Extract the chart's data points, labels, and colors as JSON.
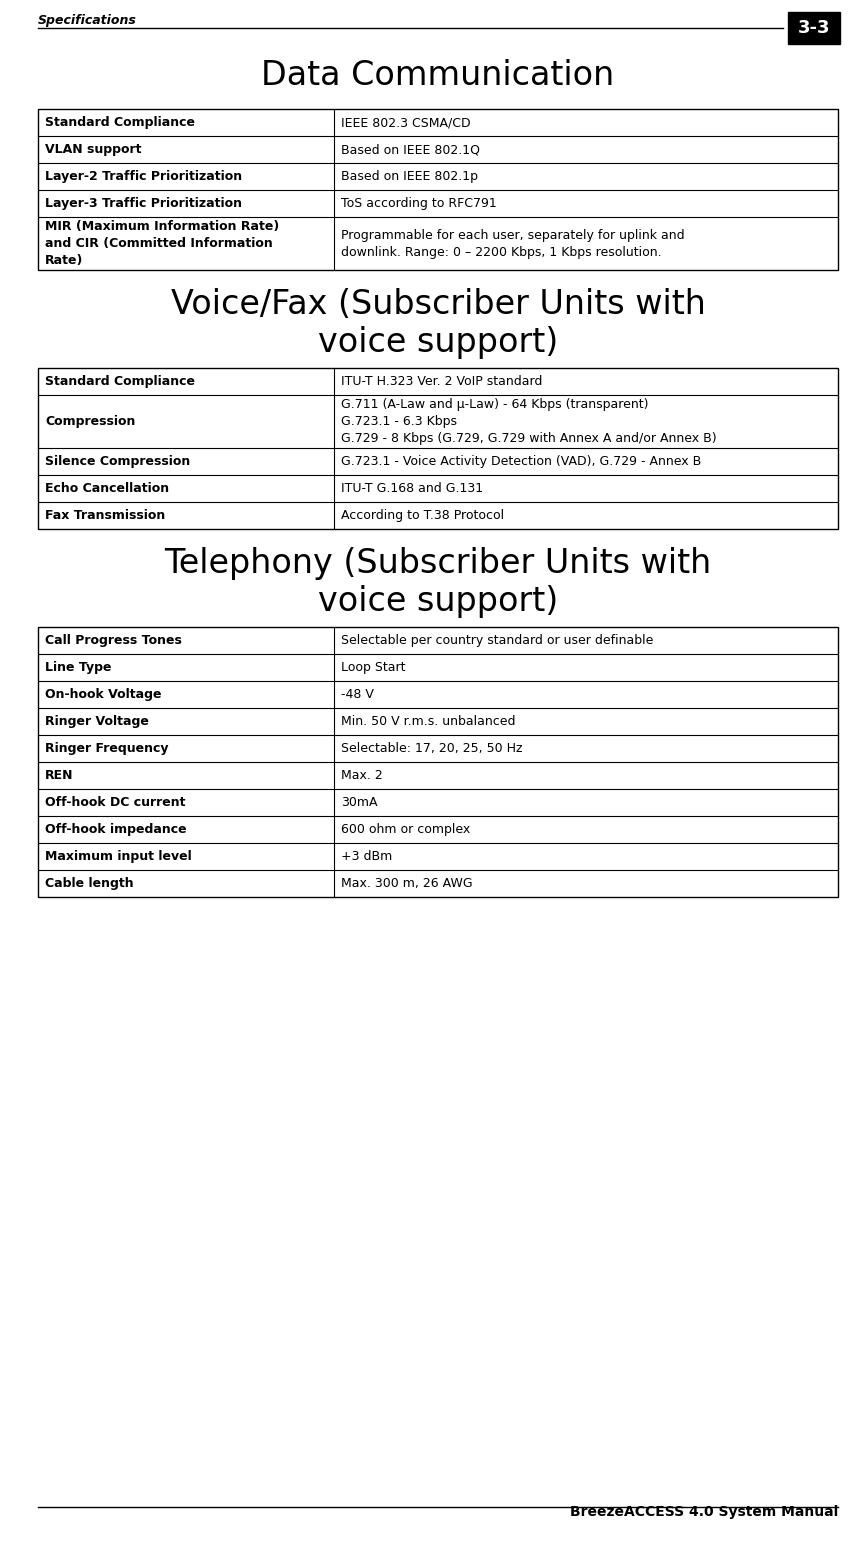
{
  "header_text": "Specifications",
  "page_num": "3-3",
  "footer_text": "BreezeACCESS 4.0 System Manual",
  "title1": "Data Communication",
  "title2": "Voice/Fax (Subscriber Units with\nvoice support)",
  "title3": "Telephony (Subscriber Units with\nvoice support)",
  "table1": {
    "rows": [
      [
        "Standard Compliance",
        "IEEE 802.3 CSMA/CD"
      ],
      [
        "VLAN support",
        "Based on IEEE 802.1Q"
      ],
      [
        "Layer-2 Traffic Prioritization",
        "Based on IEEE 802.1p"
      ],
      [
        "Layer-3 Traffic Prioritization",
        "ToS according to RFC791"
      ],
      [
        "MIR (Maximum Information Rate)\nand CIR (Committed Information\nRate)",
        "Programmable for each user, separately for uplink and\ndownlink. Range: 0 – 2200 Kbps, 1 Kbps resolution."
      ]
    ],
    "col_split": 0.37
  },
  "table2": {
    "rows": [
      [
        "Standard Compliance",
        "ITU-T H.323 Ver. 2 VoIP standard"
      ],
      [
        "Compression",
        "G.711 (A-Law and μ-Law) - 64 Kbps (transparent)\nG.723.1 - 6.3 Kbps\nG.729 - 8 Kbps (G.729, G.729 with Annex A and/or Annex B)"
      ],
      [
        "Silence Compression",
        "G.723.1 - Voice Activity Detection (VAD), G.729 - Annex B"
      ],
      [
        "Echo Cancellation",
        "ITU-T G.168 and G.131"
      ],
      [
        "Fax Transmission",
        "According to T.38 Protocol"
      ]
    ],
    "col_split": 0.37
  },
  "table3": {
    "rows": [
      [
        "Call Progress Tones",
        "Selectable per country standard or user definable"
      ],
      [
        "Line Type",
        "Loop Start"
      ],
      [
        "On-hook Voltage",
        "-48 V"
      ],
      [
        "Ringer Voltage",
        "Min. 50 V r.m.s. unbalanced"
      ],
      [
        "Ringer Frequency",
        "Selectable: 17, 20, 25, 50 Hz"
      ],
      [
        "REN",
        "Max. 2"
      ],
      [
        "Off-hook DC current",
        "30mA"
      ],
      [
        "Off-hook impedance",
        "600 ohm or complex"
      ],
      [
        "Maximum input level",
        "+3 dBm"
      ],
      [
        "Cable length",
        "Max. 300 m, 26 AWG"
      ]
    ],
    "col_split": 0.37
  },
  "bg_color": "#ffffff",
  "table_border_color": "#000000",
  "header_font_size": 9,
  "title_font_size": 22,
  "cell_font_size": 9,
  "col_split": 0.37
}
